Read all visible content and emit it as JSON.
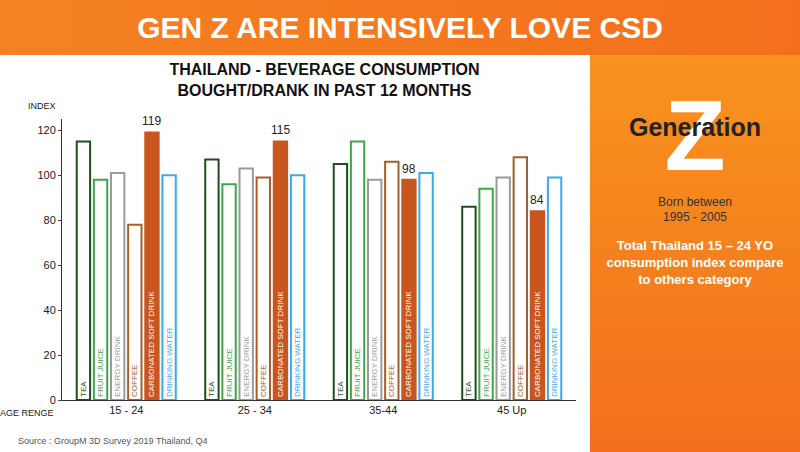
{
  "header": {
    "title": "GEN Z ARE INTENSIVELY LOVE CSD"
  },
  "panel": {
    "heading": "Generation",
    "letter": "Z",
    "born": "Born between",
    "years": "1995 - 2005",
    "note": "Total Thailand 15 – 24 YO consumption index compare to others category"
  },
  "chart_data": {
    "type": "bar",
    "title": "THAILAND - BEVERAGE CONSUMPTION\nBOUGHT/DRANK IN PAST 12 MONTHS",
    "ylabel": "INDEX",
    "xlabel": "AGE RENGE",
    "source": "Source : GroupM 3D Survey 2019 Thailand, Q4",
    "categories": [
      "15 - 24",
      "25 - 34",
      "35-44",
      "45 Up"
    ],
    "series": [
      {
        "name": "TEA",
        "color": "#1f4d1f",
        "values": [
          115,
          107,
          105,
          86
        ]
      },
      {
        "name": "FRUIT JUICE",
        "color": "#3aa845",
        "values": [
          98,
          96,
          115,
          94
        ]
      },
      {
        "name": "ENERGY DRINK",
        "color": "#9a9a9a",
        "values": [
          101,
          103,
          98,
          99
        ]
      },
      {
        "name": "COFFEE",
        "color": "#a5602a",
        "values": [
          78,
          99,
          106,
          108
        ]
      },
      {
        "name": "CARBONATED SOFT DRINK",
        "color": "#c9561f",
        "values": [
          119,
          115,
          98,
          84
        ],
        "data_labels": true
      },
      {
        "name": "DRINKING WATER",
        "color": "#3ea6ec",
        "values": [
          100,
          100,
          101,
          99
        ]
      }
    ],
    "ylim": [
      0,
      125
    ],
    "yticks": [
      0,
      20,
      40,
      60,
      80,
      100,
      120
    ],
    "grid": false
  }
}
